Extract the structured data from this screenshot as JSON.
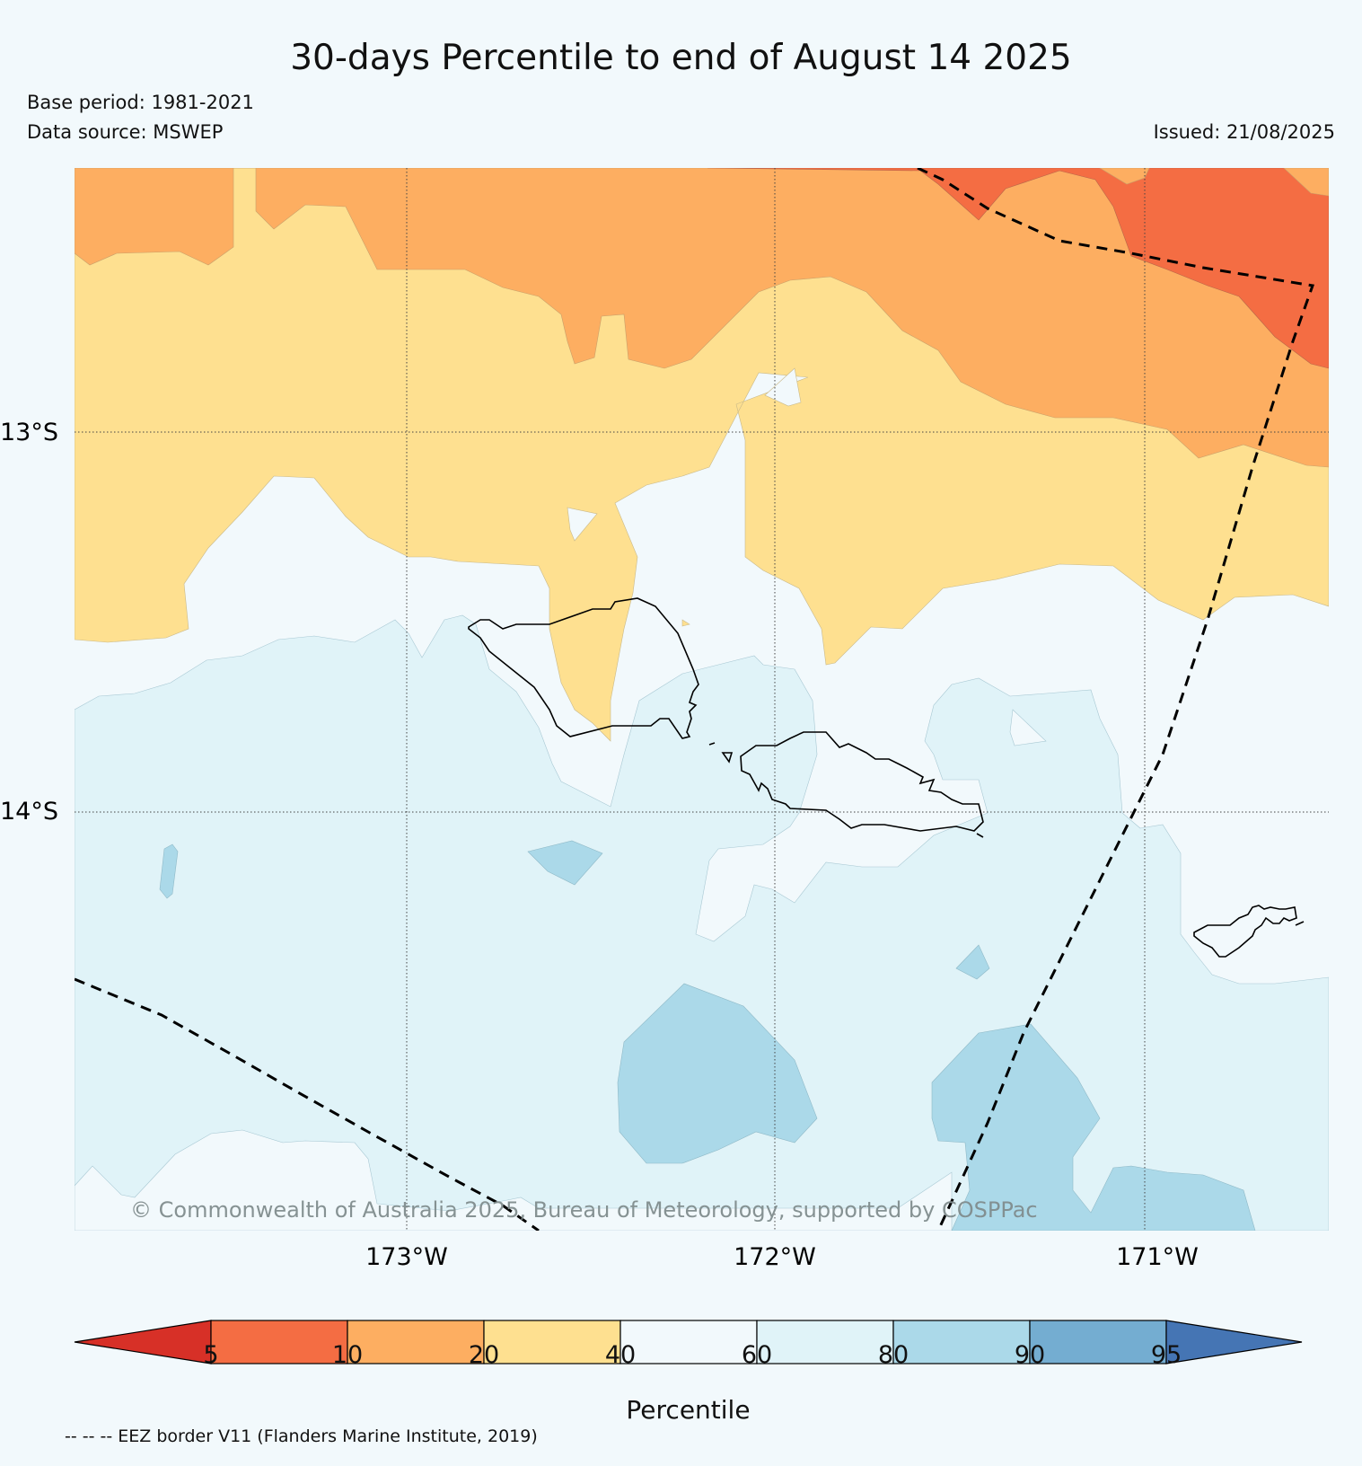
{
  "title": "30-days Percentile to end of August 14 2025",
  "base_period": "Base period: 1981-2021",
  "data_source": "Data source: MSWEP",
  "issued": "Issued: 21/08/2025",
  "map": {
    "lat_labels": [
      "13°S",
      "14°S"
    ],
    "lon_labels": [
      "173°W",
      "172°W",
      "171°W"
    ],
    "copyright": "© Commonwealth of Australia 2025, Bureau of Meteorology, supported by COSPPac"
  },
  "legend": {
    "label": "Percentile",
    "ticks": [
      "5",
      "10",
      "20",
      "40",
      "60",
      "80",
      "90",
      "95"
    ],
    "colors": [
      "#d73027",
      "#f46d43",
      "#fdae61",
      "#fee090",
      "#f2f9fc",
      "#e0f3f8",
      "#abd9e9",
      "#74add1",
      "#4575b4"
    ],
    "eez_note": "-- -- -- EEZ border V11 (Flanders Marine Institute, 2019)"
  }
}
